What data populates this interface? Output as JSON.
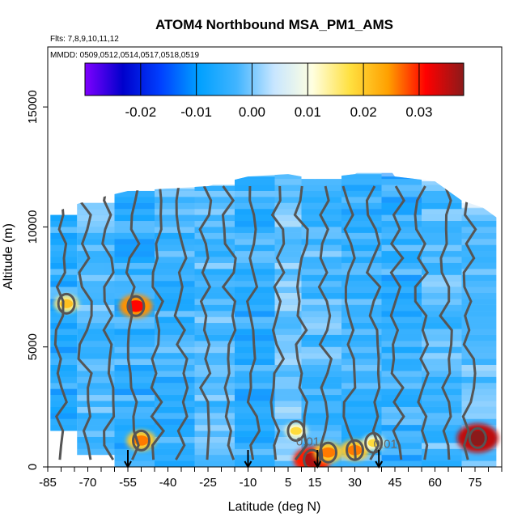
{
  "chart_data": {
    "type": "heatmap",
    "title": "ATOM4 Northbound MSA_PM1_AMS",
    "subtitle_flights": "Flts: 7,8,9,10,11,12",
    "subtitle_dates": "MMDD: 0509,0512,0514,0517,0518,0519",
    "xlabel": "Latitude (deg N)",
    "ylabel": "Altitude (m)",
    "xlim": [
      -85,
      85
    ],
    "ylim": [
      0,
      17500
    ],
    "x_ticks": [
      -85,
      -70,
      -55,
      -40,
      -25,
      -10,
      5,
      15,
      30,
      45,
      60,
      75
    ],
    "x_tick_labels": [
      "-85",
      "-70",
      "-55",
      "-40",
      "-25",
      "-10",
      "5",
      "15",
      "30",
      "45",
      "60",
      "75"
    ],
    "y_ticks": [
      0,
      5000,
      10000,
      15000
    ],
    "y_tick_labels": [
      "0",
      "5000",
      "10000",
      "15000"
    ],
    "colorbar": {
      "range": [
        -0.03,
        0.038
      ],
      "ticks": [
        -0.02,
        -0.01,
        0.0,
        0.01,
        0.02,
        0.03
      ],
      "tick_labels": [
        "-0.02",
        "-0.01",
        "0.00",
        "0.01",
        "0.02",
        "0.03"
      ],
      "colors": [
        "#7f00ff",
        "#0000cc",
        "#0040ff",
        "#00a0ff",
        "#40b4ff",
        "#c8e6ff",
        "#ffffe0",
        "#ffe040",
        "#ffa000",
        "#ff0000",
        "#8b1a1a"
      ]
    },
    "contour_labels": [
      "0.01",
      "0.01"
    ],
    "profile_arrows_lat": [
      -55,
      -10,
      16,
      39
    ],
    "ceiling_profile": [
      {
        "lat": -85,
        "alt": 10500
      },
      {
        "lat": -78,
        "alt": 10800
      },
      {
        "lat": -70,
        "alt": 11100
      },
      {
        "lat": -55,
        "alt": 11500
      },
      {
        "lat": -40,
        "alt": 11600
      },
      {
        "lat": -25,
        "alt": 11700
      },
      {
        "lat": -10,
        "alt": 12100
      },
      {
        "lat": 5,
        "alt": 12200
      },
      {
        "lat": 15,
        "alt": 12000
      },
      {
        "lat": 30,
        "alt": 12200
      },
      {
        "lat": 40,
        "alt": 12900
      },
      {
        "lat": 45,
        "alt": 12100
      },
      {
        "lat": 60,
        "alt": 11900
      },
      {
        "lat": 70,
        "alt": 11100
      },
      {
        "lat": 78,
        "alt": 10800
      },
      {
        "lat": 83,
        "alt": 10400
      }
    ],
    "bands": [
      {
        "lat": [
          -84,
          -74
        ],
        "alt": [
          1500,
          10500
        ],
        "value": -0.005
      },
      {
        "lat": [
          -74,
          -60
        ],
        "alt": [
          500,
          11000
        ],
        "value": -0.002
      },
      {
        "lat": [
          -60,
          -45
        ],
        "alt": [
          0,
          11500
        ],
        "value": -0.004
      },
      {
        "lat": [
          -45,
          -30
        ],
        "alt": [
          0,
          11600
        ],
        "value": -0.003
      },
      {
        "lat": [
          -30,
          -15
        ],
        "alt": [
          0,
          11700
        ],
        "value": -0.002
      },
      {
        "lat": [
          -15,
          0
        ],
        "alt": [
          0,
          12100
        ],
        "value": -0.004
      },
      {
        "lat": [
          0,
          10
        ],
        "alt": [
          0,
          12200
        ],
        "value": 0.0
      },
      {
        "lat": [
          10,
          25
        ],
        "alt": [
          0,
          12000
        ],
        "value": -0.002
      },
      {
        "lat": [
          25,
          40
        ],
        "alt": [
          0,
          12200
        ],
        "value": -0.003
      },
      {
        "lat": [
          40,
          55
        ],
        "alt": [
          0,
          12100
        ],
        "value": -0.004
      },
      {
        "lat": [
          55,
          70
        ],
        "alt": [
          0,
          11900
        ],
        "value": -0.002
      },
      {
        "lat": [
          70,
          83
        ],
        "alt": [
          0,
          10800
        ],
        "value": -0.001
      }
    ],
    "hotspots": [
      {
        "lat": 76,
        "alt": 1200,
        "value": 0.035
      },
      {
        "lat": 14,
        "alt": 300,
        "value": 0.03
      },
      {
        "lat": 20,
        "alt": 600,
        "value": 0.02
      },
      {
        "lat": 30,
        "alt": 700,
        "value": 0.02
      },
      {
        "lat": -52,
        "alt": 6700,
        "value": 0.025
      },
      {
        "lat": -50,
        "alt": 1100,
        "value": 0.02
      },
      {
        "lat": -78,
        "alt": 6800,
        "value": 0.015
      },
      {
        "lat": 8,
        "alt": 1500,
        "value": 0.012
      },
      {
        "lat": 37,
        "alt": 1000,
        "value": 0.012
      }
    ]
  }
}
